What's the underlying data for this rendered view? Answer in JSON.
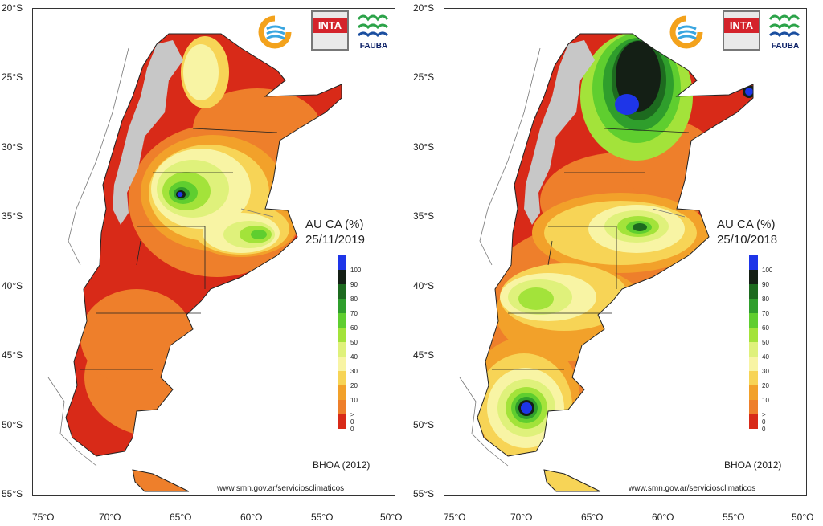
{
  "colors": {
    "c100": "#1e35e8",
    "c90": "#141f15",
    "c80": "#1d6a1f",
    "c70": "#2f9e2c",
    "c60": "#5fce2f",
    "c50": "#a3e33a",
    "c40": "#dff17b",
    "c30": "#f8f4a4",
    "c20": "#f7d456",
    "c10": "#f2a12a",
    "c0p": "#ee7f2b",
    "c0": "#d82a18",
    "andes": "#c7c7c7",
    "outline": "#222222"
  },
  "legend": {
    "labels": [
      "100",
      "90",
      "80",
      "70",
      "60",
      "50",
      "40",
      "30",
      "20",
      "10",
      "> 0",
      "0"
    ]
  },
  "axes": {
    "lat_labels": [
      "20°S",
      "25°S",
      "30°S",
      "35°S",
      "40°S",
      "45°S",
      "50°S",
      "55°S"
    ],
    "lon_labels": [
      "75°O",
      "70°O",
      "65°O",
      "60°O",
      "55°O",
      "50°O"
    ]
  },
  "panels": [
    {
      "title": "AU CA (%)",
      "date": "25/11/2019",
      "source": "BHOA (2012)",
      "url": "www.smn.gov.ar/serviciosclimaticos",
      "logos": {
        "inta": "INTA",
        "fauba": "FAUBA"
      }
    },
    {
      "title": "AU CA (%)",
      "date": "25/10/2018",
      "source": "BHOA (2012)",
      "url": "www.smn.gov.ar/serviciosclimaticos",
      "logos": {
        "inta": "INTA",
        "fauba": "FAUBA"
      }
    }
  ]
}
